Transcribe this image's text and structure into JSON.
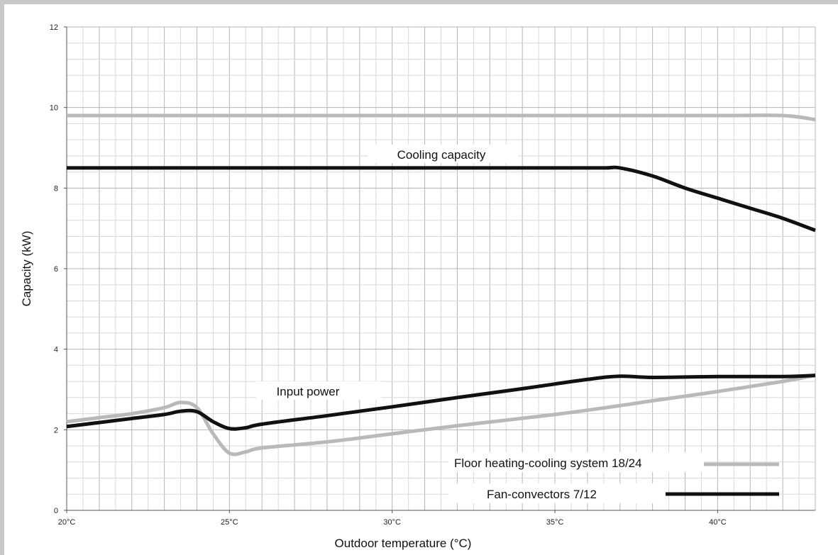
{
  "chart_data": {
    "type": "line",
    "xlabel": "Outdoor temperature (°C)",
    "ylabel": "Capacity (kW)",
    "xlim": [
      20,
      43
    ],
    "ylim": [
      0,
      12
    ],
    "x_ticks": [
      20,
      25,
      30,
      35,
      40
    ],
    "x_tick_labels": [
      "20°C",
      "25°C",
      "30°C",
      "35°C",
      "40°C"
    ],
    "y_ticks": [
      0,
      2,
      4,
      6,
      8,
      10,
      12
    ],
    "y_tick_labels": [
      "0",
      "2",
      "4",
      "6",
      "8",
      "10",
      "12"
    ],
    "grid": true,
    "legend_position": "bottom-right",
    "annotations": [
      "Cooling capacity",
      "Input power"
    ],
    "colors": {
      "floor": "#b9b9b9",
      "fan": "#111111"
    },
    "series": [
      {
        "name": "Floor heating-cooling system 18/24",
        "group": "cooling capacity",
        "color_key": "floor",
        "x": [
          20,
          25,
          30,
          35,
          40,
          42,
          43
        ],
        "y": [
          9.8,
          9.8,
          9.8,
          9.8,
          9.8,
          9.8,
          9.7
        ]
      },
      {
        "name": "Fan-convectors 7/12",
        "group": "cooling capacity",
        "color_key": "fan",
        "x": [
          20,
          25,
          30,
          35,
          36.5,
          37,
          38,
          39,
          40,
          41,
          42,
          43
        ],
        "y": [
          8.5,
          8.5,
          8.5,
          8.5,
          8.5,
          8.5,
          8.3,
          8.0,
          7.75,
          7.5,
          7.25,
          6.95
        ]
      },
      {
        "name": "Floor heating-cooling system 18/24",
        "group": "input power",
        "color_key": "floor",
        "x": [
          20,
          21,
          22,
          23,
          23.5,
          24,
          24.5,
          25,
          25.5,
          26,
          28,
          30,
          32,
          35,
          37,
          38,
          40,
          42,
          43
        ],
        "y": [
          2.2,
          2.3,
          2.4,
          2.55,
          2.68,
          2.55,
          1.9,
          1.42,
          1.45,
          1.55,
          1.7,
          1.9,
          2.1,
          2.38,
          2.6,
          2.72,
          2.95,
          3.2,
          3.35
        ]
      },
      {
        "name": "Fan-convectors 7/12",
        "group": "input power",
        "color_key": "fan",
        "x": [
          20,
          21,
          22,
          23,
          23.5,
          24,
          24.5,
          25,
          25.5,
          26,
          28,
          30,
          32,
          34,
          36,
          37,
          38,
          40,
          42,
          43
        ],
        "y": [
          2.08,
          2.18,
          2.28,
          2.38,
          2.46,
          2.45,
          2.2,
          2.03,
          2.05,
          2.14,
          2.35,
          2.57,
          2.8,
          3.02,
          3.25,
          3.33,
          3.3,
          3.32,
          3.32,
          3.35
        ]
      }
    ]
  }
}
